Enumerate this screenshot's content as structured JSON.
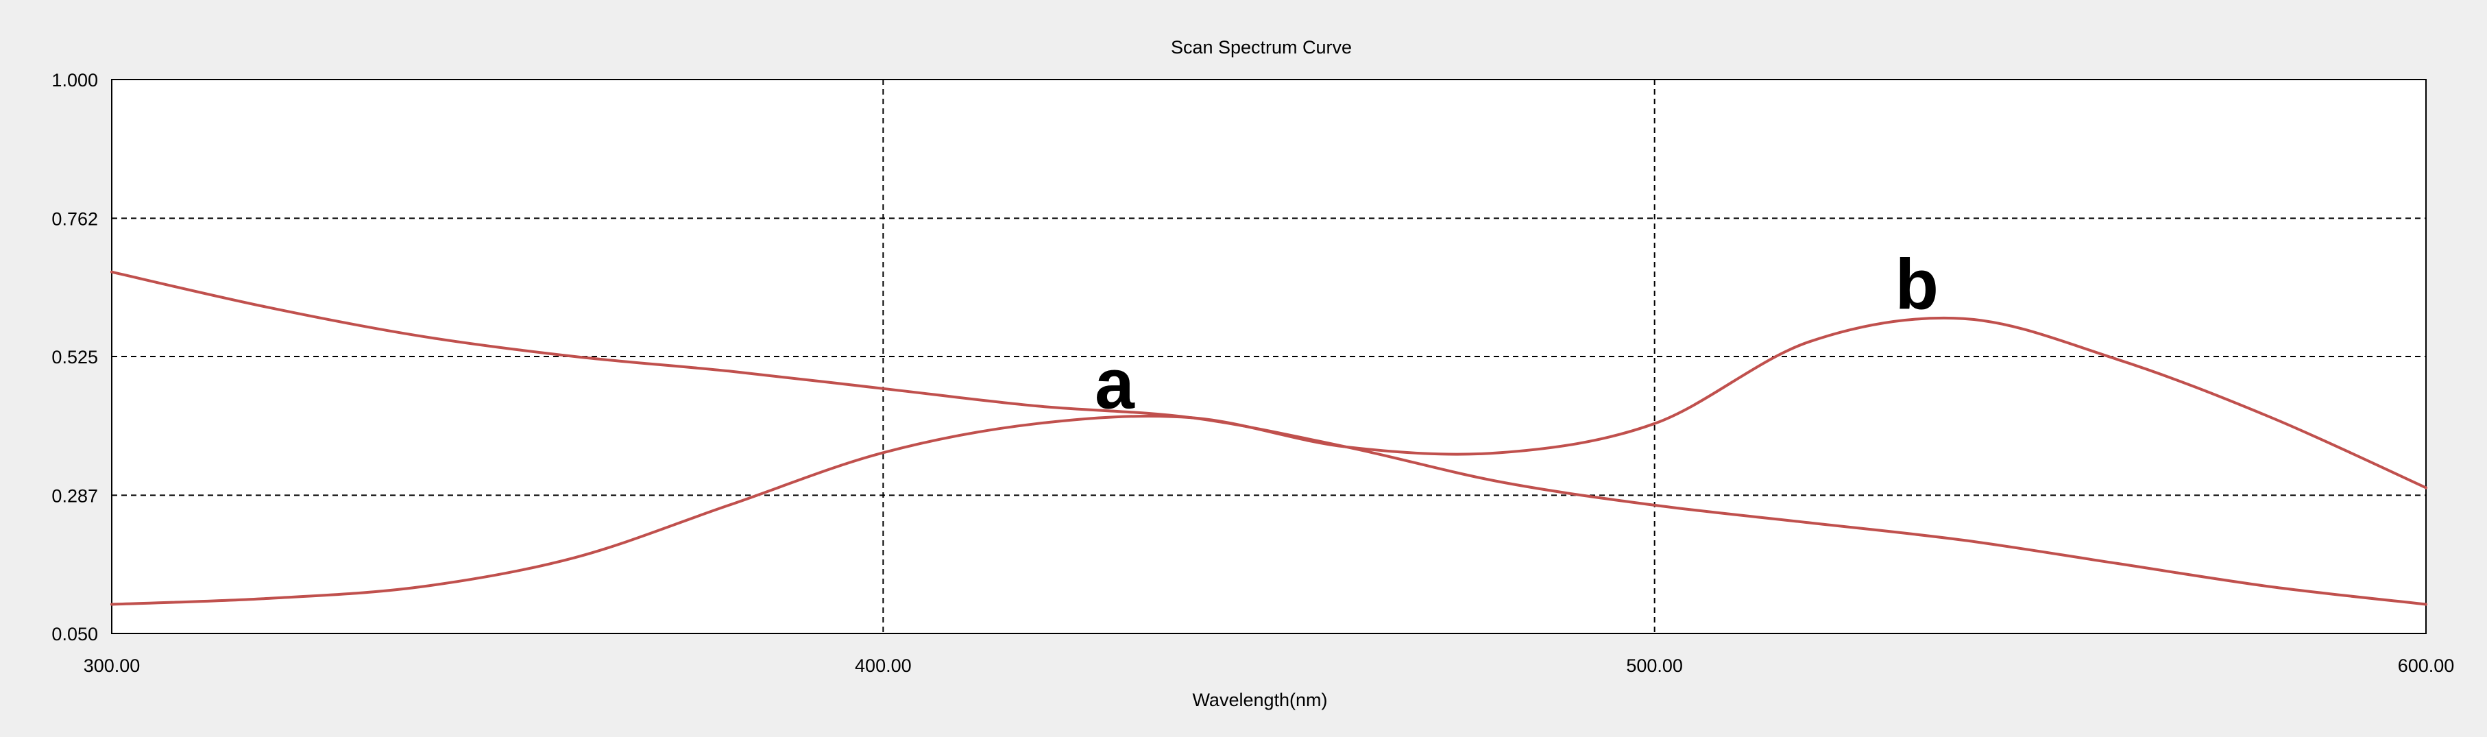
{
  "chart_data": {
    "type": "line",
    "title": "Scan Spectrum Curve",
    "xlabel": "Wavelength(nm)",
    "ylabel": "",
    "xlim": [
      300,
      600
    ],
    "ylim": [
      0.05,
      1.0
    ],
    "x_ticks": [
      "300.00",
      "400.00",
      "500.00",
      "600.00"
    ],
    "y_ticks": [
      "1.000",
      "0.762",
      "0.525",
      "0.287",
      "0.050"
    ],
    "grid": true,
    "line_color": "#c0504d",
    "series": [
      {
        "name": "a",
        "x": [
          300,
          320,
          340,
          360,
          380,
          400,
          420,
          440,
          460,
          480,
          500,
          520,
          540,
          560,
          580,
          600
        ],
        "y": [
          0.67,
          0.61,
          0.56,
          0.525,
          0.5,
          0.47,
          0.44,
          0.42,
          0.37,
          0.31,
          0.27,
          0.24,
          0.21,
          0.17,
          0.13,
          0.1
        ]
      },
      {
        "name": "b",
        "x": [
          300,
          320,
          340,
          360,
          380,
          400,
          420,
          440,
          460,
          480,
          500,
          520,
          540,
          560,
          580,
          600
        ],
        "y": [
          0.1,
          0.11,
          0.13,
          0.18,
          0.27,
          0.36,
          0.41,
          0.42,
          0.37,
          0.36,
          0.41,
          0.55,
          0.59,
          0.52,
          0.42,
          0.3
        ]
      }
    ],
    "annotations": [
      {
        "text": "a",
        "x": 430,
        "y": 0.42
      },
      {
        "text": "b",
        "x": 534,
        "y": 0.59
      }
    ]
  }
}
